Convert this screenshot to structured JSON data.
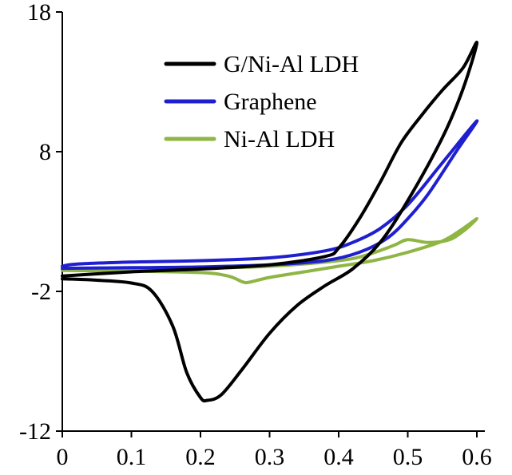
{
  "chart_data": {
    "type": "line",
    "title": "",
    "xlabel": "",
    "ylabel": "",
    "xlim": [
      0,
      0.6
    ],
    "ylim": [
      -12,
      18
    ],
    "x_ticks": [
      0,
      0.1,
      0.2,
      0.3,
      0.4,
      0.5,
      0.6
    ],
    "x_tick_labels": [
      "0",
      "0.1",
      "0.2",
      "0.3",
      "0.4",
      "0.5",
      "0.6"
    ],
    "y_ticks": [
      -12,
      -2,
      8,
      18
    ],
    "y_tick_labels": [
      "-12",
      "-2",
      "8",
      "18"
    ],
    "grid": false,
    "legend_position": "top-right",
    "series": [
      {
        "name": "G/Ni-Al LDH",
        "color": "#000000",
        "points": [
          [
            0.0,
            -1.1
          ],
          [
            0.05,
            -1.2
          ],
          [
            0.1,
            -1.4
          ],
          [
            0.13,
            -2.0
          ],
          [
            0.16,
            -4.5
          ],
          [
            0.18,
            -7.8
          ],
          [
            0.2,
            -9.6
          ],
          [
            0.21,
            -9.8
          ],
          [
            0.23,
            -9.4
          ],
          [
            0.26,
            -7.6
          ],
          [
            0.3,
            -5.0
          ],
          [
            0.34,
            -3.0
          ],
          [
            0.38,
            -1.6
          ],
          [
            0.42,
            -0.4
          ],
          [
            0.46,
            1.5
          ],
          [
            0.5,
            4.5
          ],
          [
            0.55,
            9.0
          ],
          [
            0.58,
            12.5
          ],
          [
            0.6,
            15.8
          ],
          [
            0.58,
            14.0
          ],
          [
            0.55,
            12.4
          ],
          [
            0.52,
            10.6
          ],
          [
            0.49,
            8.6
          ],
          [
            0.46,
            5.8
          ],
          [
            0.43,
            3.2
          ],
          [
            0.4,
            1.1
          ],
          [
            0.38,
            0.5
          ],
          [
            0.3,
            -0.1
          ],
          [
            0.2,
            -0.4
          ],
          [
            0.1,
            -0.6
          ],
          [
            0.0,
            -0.9
          ]
        ]
      },
      {
        "name": "Graphene",
        "color": "#1f1fd0",
        "points": [
          [
            0.0,
            -0.2
          ],
          [
            0.02,
            -0.05
          ],
          [
            0.1,
            0.1
          ],
          [
            0.2,
            0.2
          ],
          [
            0.3,
            0.4
          ],
          [
            0.38,
            0.9
          ],
          [
            0.42,
            1.5
          ],
          [
            0.46,
            2.5
          ],
          [
            0.5,
            4.2
          ],
          [
            0.55,
            7.2
          ],
          [
            0.6,
            10.2
          ],
          [
            0.57,
            8.0
          ],
          [
            0.53,
            5.0
          ],
          [
            0.5,
            3.2
          ],
          [
            0.47,
            1.8
          ],
          [
            0.43,
            0.8
          ],
          [
            0.38,
            0.2
          ],
          [
            0.3,
            -0.1
          ],
          [
            0.2,
            -0.25
          ],
          [
            0.1,
            -0.3
          ],
          [
            0.0,
            -0.35
          ]
        ]
      },
      {
        "name": "Ni-Al LDH",
        "color": "#8fb544",
        "points": [
          [
            0.0,
            -0.5
          ],
          [
            0.1,
            -0.55
          ],
          [
            0.2,
            -0.65
          ],
          [
            0.24,
            -0.9
          ],
          [
            0.26,
            -1.3
          ],
          [
            0.27,
            -1.35
          ],
          [
            0.3,
            -1.0
          ],
          [
            0.35,
            -0.6
          ],
          [
            0.4,
            -0.2
          ],
          [
            0.45,
            0.2
          ],
          [
            0.5,
            0.8
          ],
          [
            0.55,
            1.6
          ],
          [
            0.58,
            2.5
          ],
          [
            0.6,
            3.2
          ],
          [
            0.58,
            2.3
          ],
          [
            0.56,
            1.7
          ],
          [
            0.53,
            1.5
          ],
          [
            0.5,
            1.7
          ],
          [
            0.48,
            1.3
          ],
          [
            0.44,
            0.6
          ],
          [
            0.4,
            0.2
          ],
          [
            0.3,
            -0.2
          ],
          [
            0.2,
            -0.35
          ],
          [
            0.1,
            -0.4
          ],
          [
            0.0,
            -0.45
          ]
        ]
      }
    ]
  }
}
